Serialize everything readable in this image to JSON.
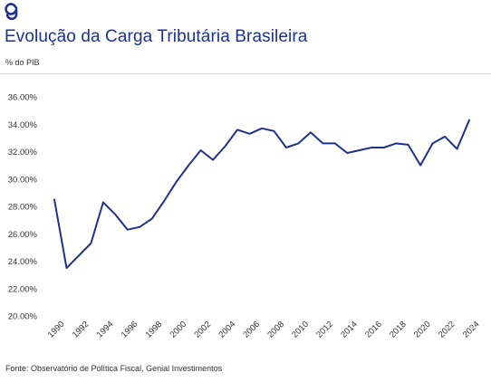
{
  "brand": {
    "logo_icon": "genial-g-logo-icon",
    "color": "#1e3190"
  },
  "header": {
    "title": "Evolução da Carga Tributária Brasileira",
    "subtitle": "% do PIB"
  },
  "footer": {
    "source": "Fonte: Observatório de Política Fiscal, Genial Investimentos"
  },
  "chart_data": {
    "type": "line",
    "title": "",
    "xlabel": "",
    "ylabel": "",
    "ylim": [
      20,
      36
    ],
    "yticks": [
      "36.00%",
      "34.00%",
      "32.00%",
      "30.00%",
      "28.00%",
      "26.00%",
      "24.00%",
      "22.00%",
      "20.00%"
    ],
    "ytick_values": [
      36,
      34,
      32,
      30,
      28,
      26,
      24,
      22,
      20
    ],
    "xticks": [
      "1990",
      "1992",
      "1994",
      "1996",
      "1998",
      "2000",
      "2002",
      "2004",
      "2006",
      "2008",
      "2010",
      "2012",
      "2014",
      "2016",
      "2018",
      "2020",
      "2022",
      "2024"
    ],
    "grid": false,
    "line_color": "#1e3190",
    "x": [
      1990,
      1991,
      1992,
      1993,
      1994,
      1995,
      1996,
      1997,
      1998,
      1999,
      2000,
      2001,
      2002,
      2003,
      2004,
      2005,
      2006,
      2007,
      2008,
      2009,
      2010,
      2011,
      2012,
      2013,
      2014,
      2015,
      2016,
      2017,
      2018,
      2019,
      2020,
      2021,
      2022,
      2023,
      2024
    ],
    "series": [
      {
        "values": [
          28.5,
          23.5,
          24.4,
          25.3,
          28.3,
          27.4,
          26.3,
          26.5,
          27.1,
          28.4,
          29.8,
          31.0,
          32.1,
          31.4,
          32.4,
          33.6,
          33.3,
          33.7,
          33.5,
          32.3,
          32.6,
          33.4,
          32.6,
          32.6,
          31.9,
          32.1,
          32.3,
          32.3,
          32.6,
          32.5,
          31.0,
          32.6,
          33.1,
          32.2,
          34.3
        ]
      }
    ]
  }
}
